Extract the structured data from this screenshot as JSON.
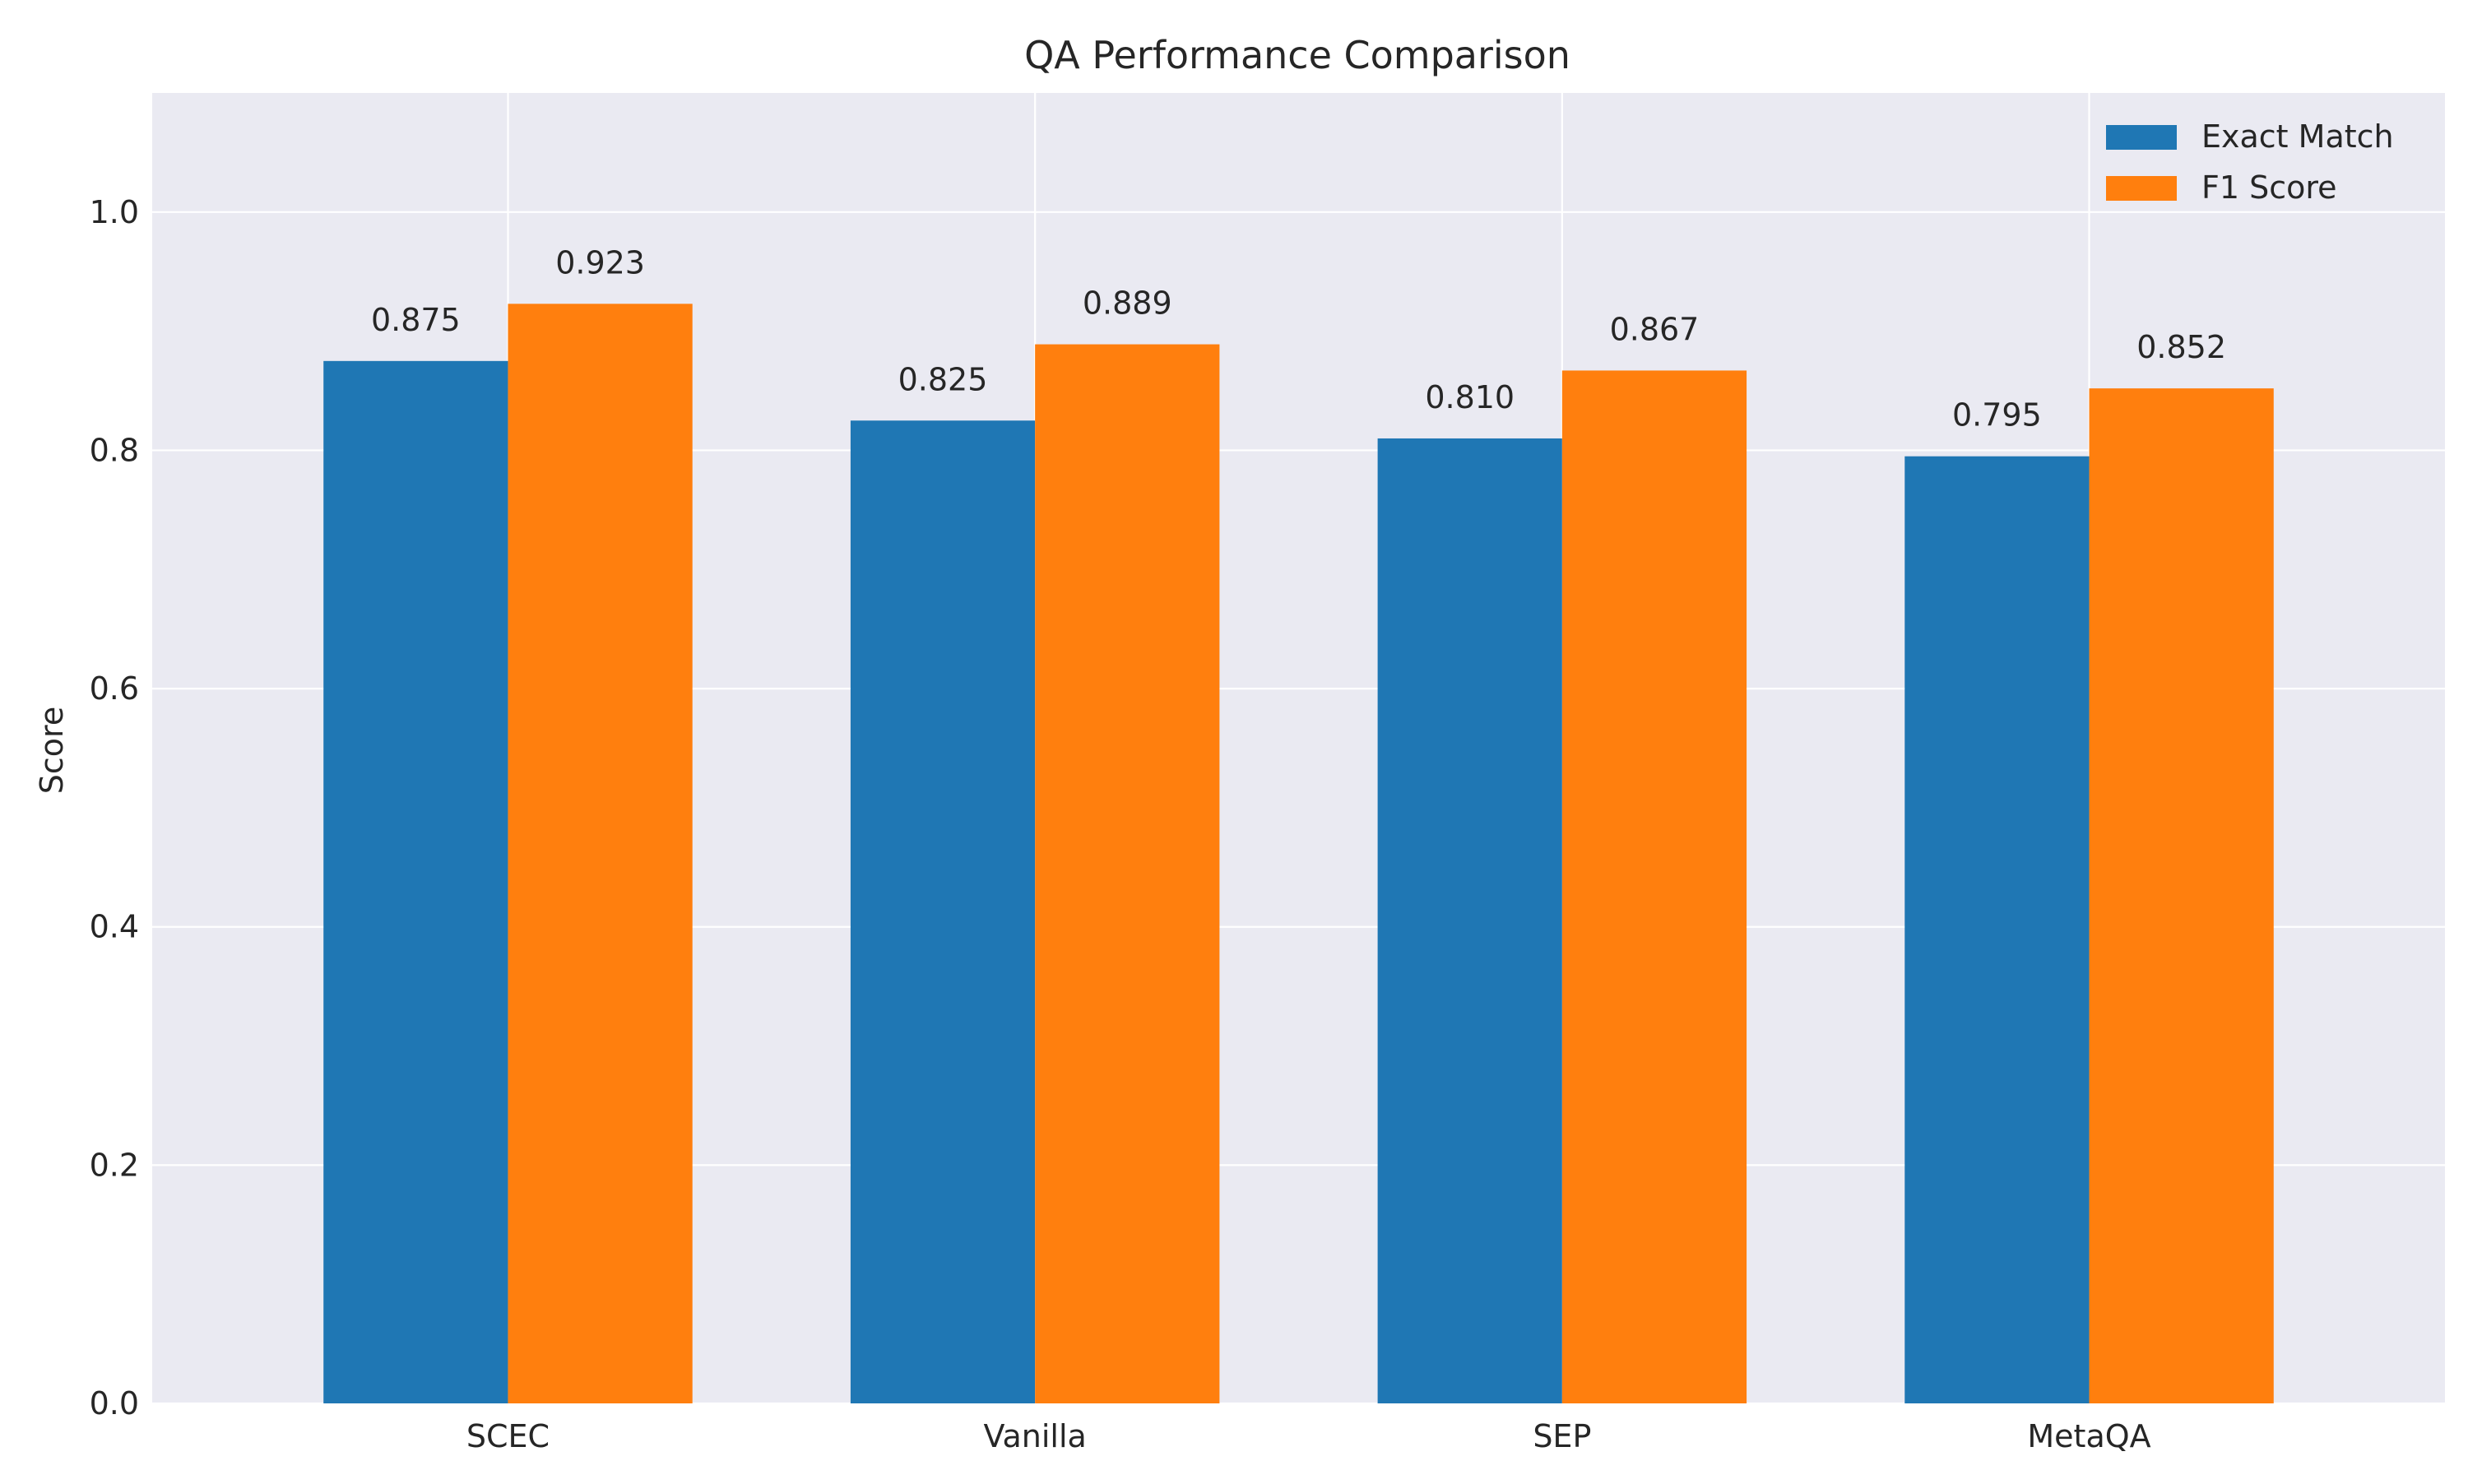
{
  "chart_data": {
    "type": "bar",
    "title": "QA Performance Comparison",
    "xlabel": "",
    "ylabel": "Score",
    "categories": [
      "SCEC",
      "Vanilla",
      "SEP",
      "MetaQA"
    ],
    "series": [
      {
        "name": "Exact Match",
        "color": "#1f77b4",
        "values": [
          0.875,
          0.825,
          0.81,
          0.795
        ]
      },
      {
        "name": "F1 Score",
        "color": "#ff7f0e",
        "values": [
          0.923,
          0.889,
          0.867,
          0.852
        ]
      }
    ],
    "data_labels": [
      [
        "0.875",
        "0.825",
        "0.810",
        "0.795"
      ],
      [
        "0.923",
        "0.889",
        "0.867",
        "0.852"
      ]
    ],
    "ylim": [
      0,
      1.1
    ],
    "yticks": [
      0.0,
      0.2,
      0.4,
      0.6,
      0.8,
      1.0
    ],
    "ytick_labels": [
      "0.0",
      "0.2",
      "0.4",
      "0.6",
      "0.8",
      "1.0"
    ],
    "grid": true,
    "legend_position": "top-right",
    "background_color": "#eaeaf2",
    "grid_color": "#ffffff"
  }
}
